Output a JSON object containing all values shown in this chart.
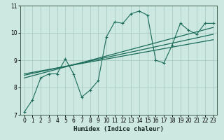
{
  "xlabel": "Humidex (Indice chaleur)",
  "bg_color": "#cce8e0",
  "line_color": "#1a6b5a",
  "grid_color": "#aaccc4",
  "xlim": [
    -0.5,
    23.5
  ],
  "ylim": [
    7,
    11
  ],
  "yticks": [
    7,
    8,
    9,
    10,
    11
  ],
  "xticks": [
    0,
    1,
    2,
    3,
    4,
    5,
    6,
    7,
    8,
    9,
    10,
    11,
    12,
    13,
    14,
    15,
    16,
    17,
    18,
    19,
    20,
    21,
    22,
    23
  ],
  "series1_x": [
    0,
    1,
    2,
    3,
    4,
    5,
    6,
    7,
    8,
    9,
    10,
    11,
    12,
    13,
    14,
    15,
    16,
    17,
    18,
    19,
    20,
    21,
    22,
    23
  ],
  "series1_y": [
    7.1,
    7.55,
    8.35,
    8.5,
    8.5,
    9.05,
    8.5,
    7.65,
    7.9,
    8.25,
    9.85,
    10.4,
    10.35,
    10.7,
    10.8,
    10.65,
    9.0,
    8.9,
    9.55,
    10.35,
    10.1,
    9.95,
    10.35,
    10.35
  ],
  "trend1_x": [
    0,
    23
  ],
  "trend1_y": [
    8.35,
    10.2
  ],
  "trend2_x": [
    0,
    23
  ],
  "trend2_y": [
    8.45,
    9.95
  ],
  "trend3_x": [
    0,
    23
  ],
  "trend3_y": [
    8.5,
    9.75
  ]
}
